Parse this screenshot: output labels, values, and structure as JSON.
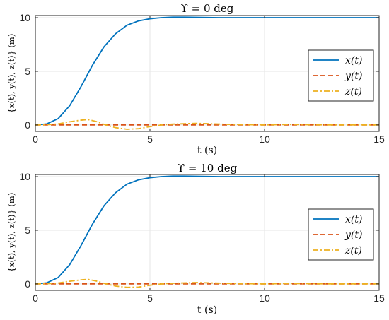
{
  "chart_data": [
    {
      "type": "line",
      "title": "ϒ = 0 deg",
      "xlabel": "t (s)",
      "ylabel": "{x(t), y(t), z(t)} (m)",
      "xlim": [
        0,
        15
      ],
      "ylim": [
        -0.6,
        10.2
      ],
      "xticks": [
        "0",
        "5",
        "10",
        "15"
      ],
      "yticks": [
        "0",
        "5",
        "10"
      ],
      "grid": true,
      "legend_position": "right",
      "series": [
        {
          "name": "x(t)",
          "style": "solid",
          "color": "#0072BD",
          "x": [
            0,
            0.5,
            1.0,
            1.5,
            2.0,
            2.5,
            3.0,
            3.5,
            4.0,
            4.5,
            5.0,
            5.5,
            6.0,
            6.5,
            7.0,
            8.0,
            9.0,
            10.0,
            11.0,
            12.0,
            13.0,
            14.0,
            15.0
          ],
          "y": [
            0,
            0.1,
            0.6,
            1.8,
            3.6,
            5.6,
            7.3,
            8.5,
            9.3,
            9.7,
            9.9,
            10.0,
            10.05,
            10.05,
            10.03,
            10.0,
            10.0,
            10.0,
            10.0,
            10.0,
            10.0,
            10.0,
            10.0
          ]
        },
        {
          "name": "y(t)",
          "style": "dashed",
          "color": "#D95319",
          "x": [
            0,
            15
          ],
          "y": [
            0,
            0
          ]
        },
        {
          "name": "z(t)",
          "style": "dashdot",
          "color": "#EDB120",
          "x": [
            0,
            0.5,
            1.0,
            1.5,
            2.0,
            2.3,
            2.7,
            3.0,
            3.5,
            4.0,
            4.5,
            5.0,
            5.5,
            6.0,
            7.0,
            7.5,
            8.5,
            10.0,
            11.0,
            12.0,
            13.0,
            14.0,
            15.0
          ],
          "y": [
            0,
            0.02,
            0.1,
            0.3,
            0.45,
            0.5,
            0.3,
            0.05,
            -0.25,
            -0.4,
            -0.35,
            -0.15,
            0.0,
            0.08,
            0.15,
            0.12,
            0.05,
            0.0,
            0.05,
            0.02,
            0.0,
            0.0,
            0.0
          ]
        }
      ]
    },
    {
      "type": "line",
      "title": "ϒ = 10 deg",
      "xlabel": "t (s)",
      "ylabel": "{x(t), y(t), z(t)} (m)",
      "xlim": [
        0,
        15
      ],
      "ylim": [
        -0.6,
        10.2
      ],
      "xticks": [
        "0",
        "5",
        "10",
        "15"
      ],
      "yticks": [
        "0",
        "5",
        "10"
      ],
      "grid": true,
      "legend_position": "right",
      "series": [
        {
          "name": "x(t)",
          "style": "solid",
          "color": "#0072BD",
          "x": [
            0,
            0.5,
            1.0,
            1.5,
            2.0,
            2.5,
            3.0,
            3.5,
            4.0,
            4.5,
            5.0,
            5.5,
            6.0,
            6.5,
            7.0,
            8.0,
            9.0,
            10.0,
            11.0,
            12.0,
            13.0,
            14.0,
            15.0
          ],
          "y": [
            0,
            0.1,
            0.6,
            1.8,
            3.6,
            5.6,
            7.3,
            8.5,
            9.3,
            9.7,
            9.9,
            10.0,
            10.05,
            10.05,
            10.03,
            10.0,
            10.0,
            10.0,
            10.0,
            10.0,
            10.0,
            10.0,
            10.0
          ]
        },
        {
          "name": "y(t)",
          "style": "dashed",
          "color": "#D95319",
          "x": [
            0,
            15
          ],
          "y": [
            0,
            0
          ]
        },
        {
          "name": "z(t)",
          "style": "dashdot",
          "color": "#EDB120",
          "x": [
            0,
            0.5,
            1.0,
            1.5,
            2.0,
            2.3,
            2.7,
            3.0,
            3.5,
            4.0,
            4.5,
            5.0,
            5.5,
            6.0,
            7.0,
            7.5,
            8.5,
            10.0,
            11.0,
            12.0,
            13.0,
            14.0,
            15.0
          ],
          "y": [
            0,
            0.02,
            0.08,
            0.25,
            0.38,
            0.42,
            0.25,
            0.05,
            -0.2,
            -0.32,
            -0.3,
            -0.12,
            0.0,
            0.06,
            0.12,
            0.1,
            0.04,
            0.0,
            0.04,
            0.02,
            0.0,
            0.0,
            0.0
          ]
        }
      ]
    }
  ]
}
